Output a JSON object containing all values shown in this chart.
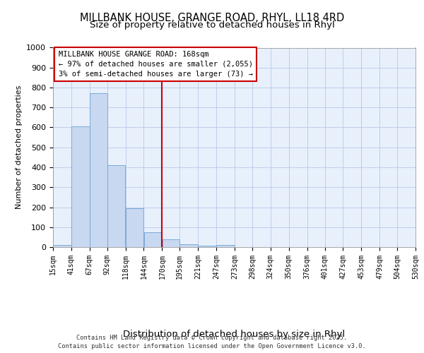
{
  "title1": "MILLBANK HOUSE, GRANGE ROAD, RHYL, LL18 4RD",
  "title2": "Size of property relative to detached houses in Rhyl",
  "xlabel": "Distribution of detached houses by size in Rhyl",
  "ylabel": "Number of detached properties",
  "annotation_line1": "MILLBANK HOUSE GRANGE ROAD: 168sqm",
  "annotation_line2": "← 97% of detached houses are smaller (2,055)",
  "annotation_line3": "3% of semi-detached houses are larger (73) →",
  "footer_line1": "Contains HM Land Registry data © Crown copyright and database right 2025.",
  "footer_line2": "Contains public sector information licensed under the Open Government Licence v3.0.",
  "bins": [
    15,
    41,
    67,
    92,
    118,
    144,
    170,
    195,
    221,
    247,
    273,
    298,
    324,
    350,
    376,
    401,
    427,
    453,
    479,
    504,
    530
  ],
  "bar_heights": [
    12,
    605,
    770,
    412,
    193,
    75,
    40,
    15,
    8,
    10,
    0,
    0,
    0,
    0,
    0,
    0,
    0,
    0,
    0,
    0
  ],
  "bar_color": "#c8d8f0",
  "bar_edgecolor": "#7aaad8",
  "vline_x": 170,
  "vline_color": "#cc0000",
  "annotation_box_edgecolor": "#cc0000",
  "background_color": "#e8f0fc",
  "ylim": [
    0,
    1000
  ],
  "xlim": [
    15,
    530
  ],
  "yticks": [
    0,
    100,
    200,
    300,
    400,
    500,
    600,
    700,
    800,
    900,
    1000
  ],
  "title_fontsize": 10.5,
  "subtitle_fontsize": 9.5,
  "xlabel_fontsize": 9.5,
  "ylabel_fontsize": 8,
  "tick_labels": [
    "15sqm",
    "41sqm",
    "67sqm",
    "92sqm",
    "118sqm",
    "144sqm",
    "170sqm",
    "195sqm",
    "221sqm",
    "247sqm",
    "273sqm",
    "298sqm",
    "324sqm",
    "350sqm",
    "376sqm",
    "401sqm",
    "427sqm",
    "453sqm",
    "479sqm",
    "504sqm",
    "530sqm"
  ]
}
